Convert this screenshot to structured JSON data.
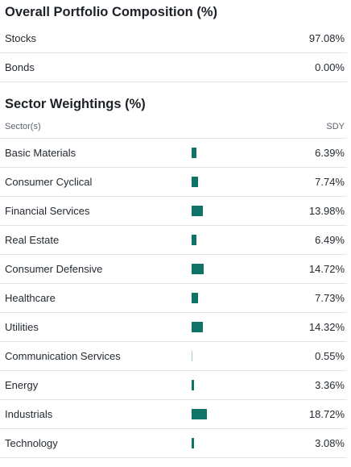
{
  "composition": {
    "title": "Overall Portfolio Composition (%)",
    "rows": [
      {
        "label": "Stocks",
        "value": "97.08%"
      },
      {
        "label": "Bonds",
        "value": "0.00%"
      }
    ]
  },
  "sectors": {
    "title": "Sector Weightings (%)",
    "header": {
      "left": "Sector(s)",
      "right": "SDY"
    },
    "bar_color": "#0f7467",
    "rows": [
      {
        "label": "Basic Materials",
        "value": "6.39%",
        "weight": 6.39
      },
      {
        "label": "Consumer Cyclical",
        "value": "7.74%",
        "weight": 7.74
      },
      {
        "label": "Financial Services",
        "value": "13.98%",
        "weight": 13.98
      },
      {
        "label": "Real Estate",
        "value": "6.49%",
        "weight": 6.49
      },
      {
        "label": "Consumer Defensive",
        "value": "14.72%",
        "weight": 14.72
      },
      {
        "label": "Healthcare",
        "value": "7.73%",
        "weight": 7.73
      },
      {
        "label": "Utilities",
        "value": "14.32%",
        "weight": 14.32
      },
      {
        "label": "Communication Services",
        "value": "0.55%",
        "weight": 0.55
      },
      {
        "label": "Energy",
        "value": "3.36%",
        "weight": 3.36
      },
      {
        "label": "Industrials",
        "value": "18.72%",
        "weight": 18.72
      },
      {
        "label": "Technology",
        "value": "3.08%",
        "weight": 3.08
      }
    ]
  }
}
